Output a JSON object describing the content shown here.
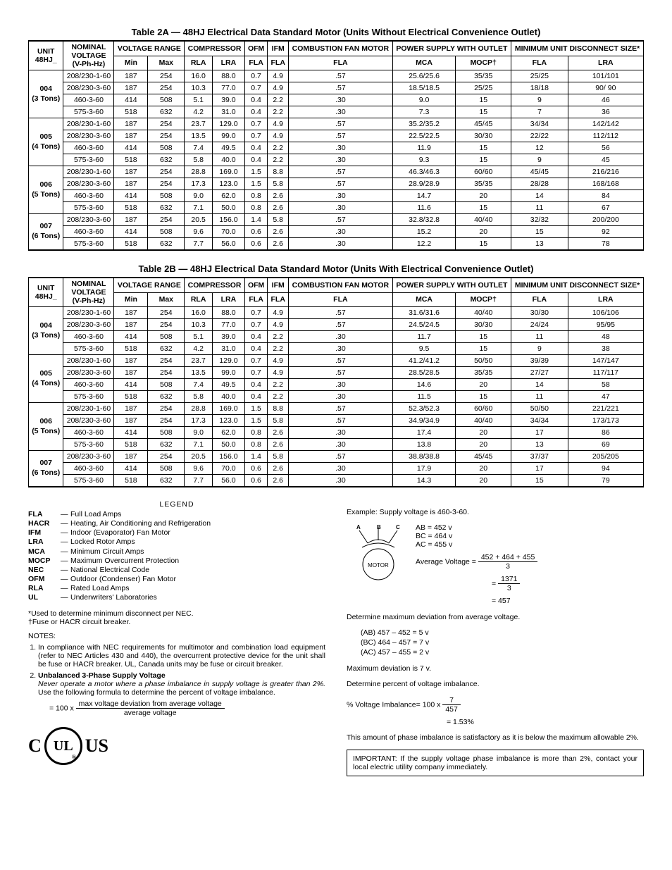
{
  "table2a": {
    "title": "Table 2A — 48HJ Electrical Data Standard Motor (Units Without Electrical Convenience Outlet)",
    "groups": [
      {
        "unit": "004",
        "tons": "(3 Tons)",
        "rows": [
          [
            "208/230-1-60",
            "187",
            "254",
            "16.0",
            "88.0",
            "0.7",
            "4.9",
            ".57",
            "25.6/25.6",
            "35/35",
            "25/25",
            "101/101"
          ],
          [
            "208/230-3-60",
            "187",
            "254",
            "10.3",
            "77.0",
            "0.7",
            "4.9",
            ".57",
            "18.5/18.5",
            "25/25",
            "18/18",
            "90/ 90"
          ],
          [
            "460-3-60",
            "414",
            "508",
            "5.1",
            "39.0",
            "0.4",
            "2.2",
            ".30",
            "9.0",
            "15",
            "9",
            "46"
          ],
          [
            "575-3-60",
            "518",
            "632",
            "4.2",
            "31.0",
            "0.4",
            "2.2",
            ".30",
            "7.3",
            "15",
            "7",
            "36"
          ]
        ]
      },
      {
        "unit": "005",
        "tons": "(4 Tons)",
        "rows": [
          [
            "208/230-1-60",
            "187",
            "254",
            "23.7",
            "129.0",
            "0.7",
            "4.9",
            ".57",
            "35.2/35.2",
            "45/45",
            "34/34",
            "142/142"
          ],
          [
            "208/230-3-60",
            "187",
            "254",
            "13.5",
            "99.0",
            "0.7",
            "4.9",
            ".57",
            "22.5/22.5",
            "30/30",
            "22/22",
            "112/112"
          ],
          [
            "460-3-60",
            "414",
            "508",
            "7.4",
            "49.5",
            "0.4",
            "2.2",
            ".30",
            "11.9",
            "15",
            "12",
            "56"
          ],
          [
            "575-3-60",
            "518",
            "632",
            "5.8",
            "40.0",
            "0.4",
            "2.2",
            ".30",
            "9.3",
            "15",
            "9",
            "45"
          ]
        ]
      },
      {
        "unit": "006",
        "tons": "(5 Tons)",
        "rows": [
          [
            "208/230-1-60",
            "187",
            "254",
            "28.8",
            "169.0",
            "1.5",
            "8.8",
            ".57",
            "46.3/46.3",
            "60/60",
            "45/45",
            "216/216"
          ],
          [
            "208/230-3-60",
            "187",
            "254",
            "17.3",
            "123.0",
            "1.5",
            "5.8",
            ".57",
            "28.9/28.9",
            "35/35",
            "28/28",
            "168/168"
          ],
          [
            "460-3-60",
            "414",
            "508",
            "9.0",
            "62.0",
            "0.8",
            "2.6",
            ".30",
            "14.7",
            "20",
            "14",
            "84"
          ],
          [
            "575-3-60",
            "518",
            "632",
            "7.1",
            "50.0",
            "0.8",
            "2.6",
            ".30",
            "11.6",
            "15",
            "11",
            "67"
          ]
        ]
      },
      {
        "unit": "007",
        "tons": "(6 Tons)",
        "rows": [
          [
            "208/230-3-60",
            "187",
            "254",
            "20.5",
            "156.0",
            "1.4",
            "5.8",
            ".57",
            "32.8/32.8",
            "40/40",
            "32/32",
            "200/200"
          ],
          [
            "460-3-60",
            "414",
            "508",
            "9.6",
            "70.0",
            "0.6",
            "2.6",
            ".30",
            "15.2",
            "20",
            "15",
            "92"
          ],
          [
            "575-3-60",
            "518",
            "632",
            "7.7",
            "56.0",
            "0.6",
            "2.6",
            ".30",
            "12.2",
            "15",
            "13",
            "78"
          ]
        ]
      }
    ]
  },
  "table2b": {
    "title": "Table 2B — 48HJ Electrical Data Standard Motor (Units With Electrical Convenience Outlet)",
    "groups": [
      {
        "unit": "004",
        "tons": "(3 Tons)",
        "rows": [
          [
            "208/230-1-60",
            "187",
            "254",
            "16.0",
            "88.0",
            "0.7",
            "4.9",
            ".57",
            "31.6/31.6",
            "40/40",
            "30/30",
            "106/106"
          ],
          [
            "208/230-3-60",
            "187",
            "254",
            "10.3",
            "77.0",
            "0.7",
            "4.9",
            ".57",
            "24.5/24.5",
            "30/30",
            "24/24",
            "95/95"
          ],
          [
            "460-3-60",
            "414",
            "508",
            "5.1",
            "39.0",
            "0.4",
            "2.2",
            ".30",
            "11.7",
            "15",
            "11",
            "48"
          ],
          [
            "575-3-60",
            "518",
            "632",
            "4.2",
            "31.0",
            "0.4",
            "2.2",
            ".30",
            "9.5",
            "15",
            "9",
            "38"
          ]
        ]
      },
      {
        "unit": "005",
        "tons": "(4 Tons)",
        "rows": [
          [
            "208/230-1-60",
            "187",
            "254",
            "23.7",
            "129.0",
            "0.7",
            "4.9",
            ".57",
            "41.2/41.2",
            "50/50",
            "39/39",
            "147/147"
          ],
          [
            "208/230-3-60",
            "187",
            "254",
            "13.5",
            "99.0",
            "0.7",
            "4.9",
            ".57",
            "28.5/28.5",
            "35/35",
            "27/27",
            "117/117"
          ],
          [
            "460-3-60",
            "414",
            "508",
            "7.4",
            "49.5",
            "0.4",
            "2.2",
            ".30",
            "14.6",
            "20",
            "14",
            "58"
          ],
          [
            "575-3-60",
            "518",
            "632",
            "5.8",
            "40.0",
            "0.4",
            "2.2",
            ".30",
            "11.5",
            "15",
            "11",
            "47"
          ]
        ]
      },
      {
        "unit": "006",
        "tons": "(5 Tons)",
        "rows": [
          [
            "208/230-1-60",
            "187",
            "254",
            "28.8",
            "169.0",
            "1.5",
            "8.8",
            ".57",
            "52.3/52.3",
            "60/60",
            "50/50",
            "221/221"
          ],
          [
            "208/230-3-60",
            "187",
            "254",
            "17.3",
            "123.0",
            "1.5",
            "5.8",
            ".57",
            "34.9/34.9",
            "40/40",
            "34/34",
            "173/173"
          ],
          [
            "460-3-60",
            "414",
            "508",
            "9.0",
            "62.0",
            "0.8",
            "2.6",
            ".30",
            "17.4",
            "20",
            "17",
            "86"
          ],
          [
            "575-3-60",
            "518",
            "632",
            "7.1",
            "50.0",
            "0.8",
            "2.6",
            ".30",
            "13.8",
            "20",
            "13",
            "69"
          ]
        ]
      },
      {
        "unit": "007",
        "tons": "(6 Tons)",
        "rows": [
          [
            "208/230-3-60",
            "187",
            "254",
            "20.5",
            "156.0",
            "1.4",
            "5.8",
            ".57",
            "38.8/38.8",
            "45/45",
            "37/37",
            "205/205"
          ],
          [
            "460-3-60",
            "414",
            "508",
            "9.6",
            "70.0",
            "0.6",
            "2.6",
            ".30",
            "17.9",
            "20",
            "17",
            "94"
          ],
          [
            "575-3-60",
            "518",
            "632",
            "7.7",
            "56.0",
            "0.6",
            "2.6",
            ".30",
            "14.3",
            "20",
            "15",
            "79"
          ]
        ]
      }
    ]
  },
  "headers": {
    "unit_line1": "UNIT",
    "unit_line2": "48HJ_",
    "nominal_line1": "NOMINAL",
    "nominal_line2": "VOLTAGE",
    "nominal_line3": "(V-Ph-Hz)",
    "vrange": "VOLTAGE RANGE",
    "min": "Min",
    "max": "Max",
    "compressor": "COMPRESSOR",
    "rla": "RLA",
    "lra": "LRA",
    "ofm": "OFM",
    "ifm": "IFM",
    "fla": "FLA",
    "combustion": "COMBUSTION FAN MOTOR",
    "power": "POWER SUPPLY WITH OUTLET",
    "mca": "MCA",
    "mocp": "MOCP†",
    "mud": "MINIMUM UNIT DISCONNECT SIZE*"
  },
  "legend": {
    "title": "LEGEND",
    "items": [
      {
        "abbr": "FLA",
        "text": "Full Load Amps"
      },
      {
        "abbr": "HACR",
        "text": "Heating, Air Conditioning and Refrigeration"
      },
      {
        "abbr": "IFM",
        "text": "Indoor (Evaporator) Fan Motor"
      },
      {
        "abbr": "LRA",
        "text": "Locked Rotor Amps"
      },
      {
        "abbr": "MCA",
        "text": "Minimum Circuit Amps"
      },
      {
        "abbr": "MOCP",
        "text": "Maximum Overcurrent Protection"
      },
      {
        "abbr": "NEC",
        "text": "National Electrical Code"
      },
      {
        "abbr": "OFM",
        "text": "Outdoor (Condenser) Fan Motor"
      },
      {
        "abbr": "RLA",
        "text": "Rated Load Amps"
      },
      {
        "abbr": "UL",
        "text": "Underwriters' Laboratories"
      }
    ]
  },
  "footnotes": {
    "star": "*Used to determine minimum disconnect per NEC.",
    "dagger": "†Fuse or HACR circuit breaker."
  },
  "notes": {
    "label": "NOTES:",
    "n1": "In compliance with NEC requirements for multimotor and combination load equipment (refer to NEC Articles 430 and 440), the overcurrent protective device for the unit shall be fuse or HACR breaker. UL, Canada units may be fuse or circuit breaker.",
    "n2_title": "Unbalanced 3-Phase Supply Voltage",
    "n2_italic": "Never operate a motor where a phase imbalance in supply voltage is greater than 2%.",
    "n2_rest": " Use the following formula to determine the percent of voltage imbalance.",
    "formula_lead": "= 100 x ",
    "formula_num": "max voltage deviation from average voltage",
    "formula_den": "average voltage"
  },
  "example": {
    "lead": "Example: Supply voltage is 460-3-60.",
    "ab": "AB = 452 v",
    "bc": "BC = 464 v",
    "ac": "AC = 455 v",
    "avg_label": "Average Voltage = ",
    "avg_num": "452 + 464 + 455",
    "avg_den": "3",
    "step2_num": "1371",
    "step2_den": "3",
    "step2_lead": "= ",
    "result": "= 457",
    "det_max": "Determine maximum deviation from average voltage.",
    "dev_ab": "(AB) 457 – 452 = 5 v",
    "dev_bc": "(BC) 464 – 457 = 7 v",
    "dev_ac": "(AC) 457 – 455 = 2 v",
    "max_dev": "Maximum deviation is 7 v.",
    "det_pct": "Determine percent of voltage imbalance.",
    "pct_lead": "% Voltage Imbalance= 100 x ",
    "pct_num": "7",
    "pct_den": "457",
    "pct_result": "= 1.53%",
    "conclusion": "This amount of phase imbalance is satisfactory as it is below the maximum allowable 2%.",
    "important": "IMPORTANT: If the supply voltage phase imbalance is more than 2%, contact your local electric utility company immediately."
  },
  "logo": {
    "left": "C",
    "right": "US",
    "center": "UL"
  }
}
